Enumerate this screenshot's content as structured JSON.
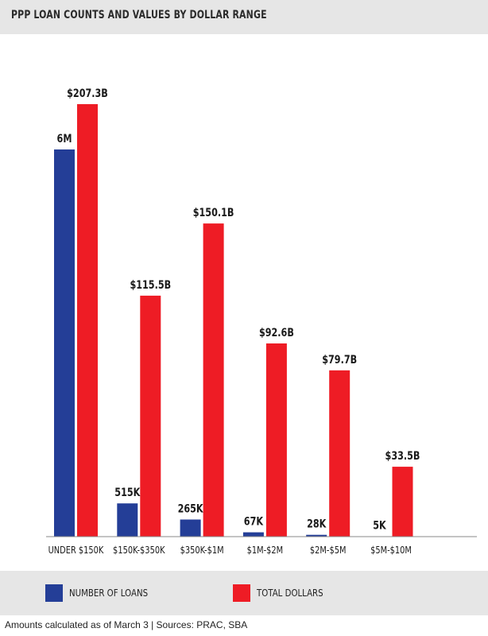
{
  "chart_data": {
    "type": "bar",
    "title": "PPP LOAN COUNTS AND VALUES BY DOLLAR RANGE",
    "categories": [
      "UNDER $150K",
      "$150K-$350K",
      "$350K-$1M",
      "$1M-$2M",
      "$2M-$5M",
      "$5M-$10M"
    ],
    "series": [
      {
        "name": "NUMBER OF LOANS",
        "color": "#243e97",
        "values": [
          6000000,
          515000,
          265000,
          67000,
          28000,
          5000
        ],
        "labels": [
          "6M",
          "515K",
          "265K",
          "67K",
          "28K",
          "5K"
        ]
      },
      {
        "name": "TOTAL DOLLARS",
        "color": "#ee1c25",
        "values": [
          207.3,
          115.5,
          150.1,
          92.6,
          79.7,
          33.5
        ],
        "labels": [
          "$207.3B",
          "$115.5B",
          "$150.1B",
          "$92.6B",
          "$79.7B",
          "$33.5B"
        ]
      }
    ],
    "xlabel": "",
    "ylabel": "",
    "grid": false,
    "legend_position": "bottom"
  },
  "footer": "Amounts calculated as of March 3  |  Sources: PRAC, SBA"
}
